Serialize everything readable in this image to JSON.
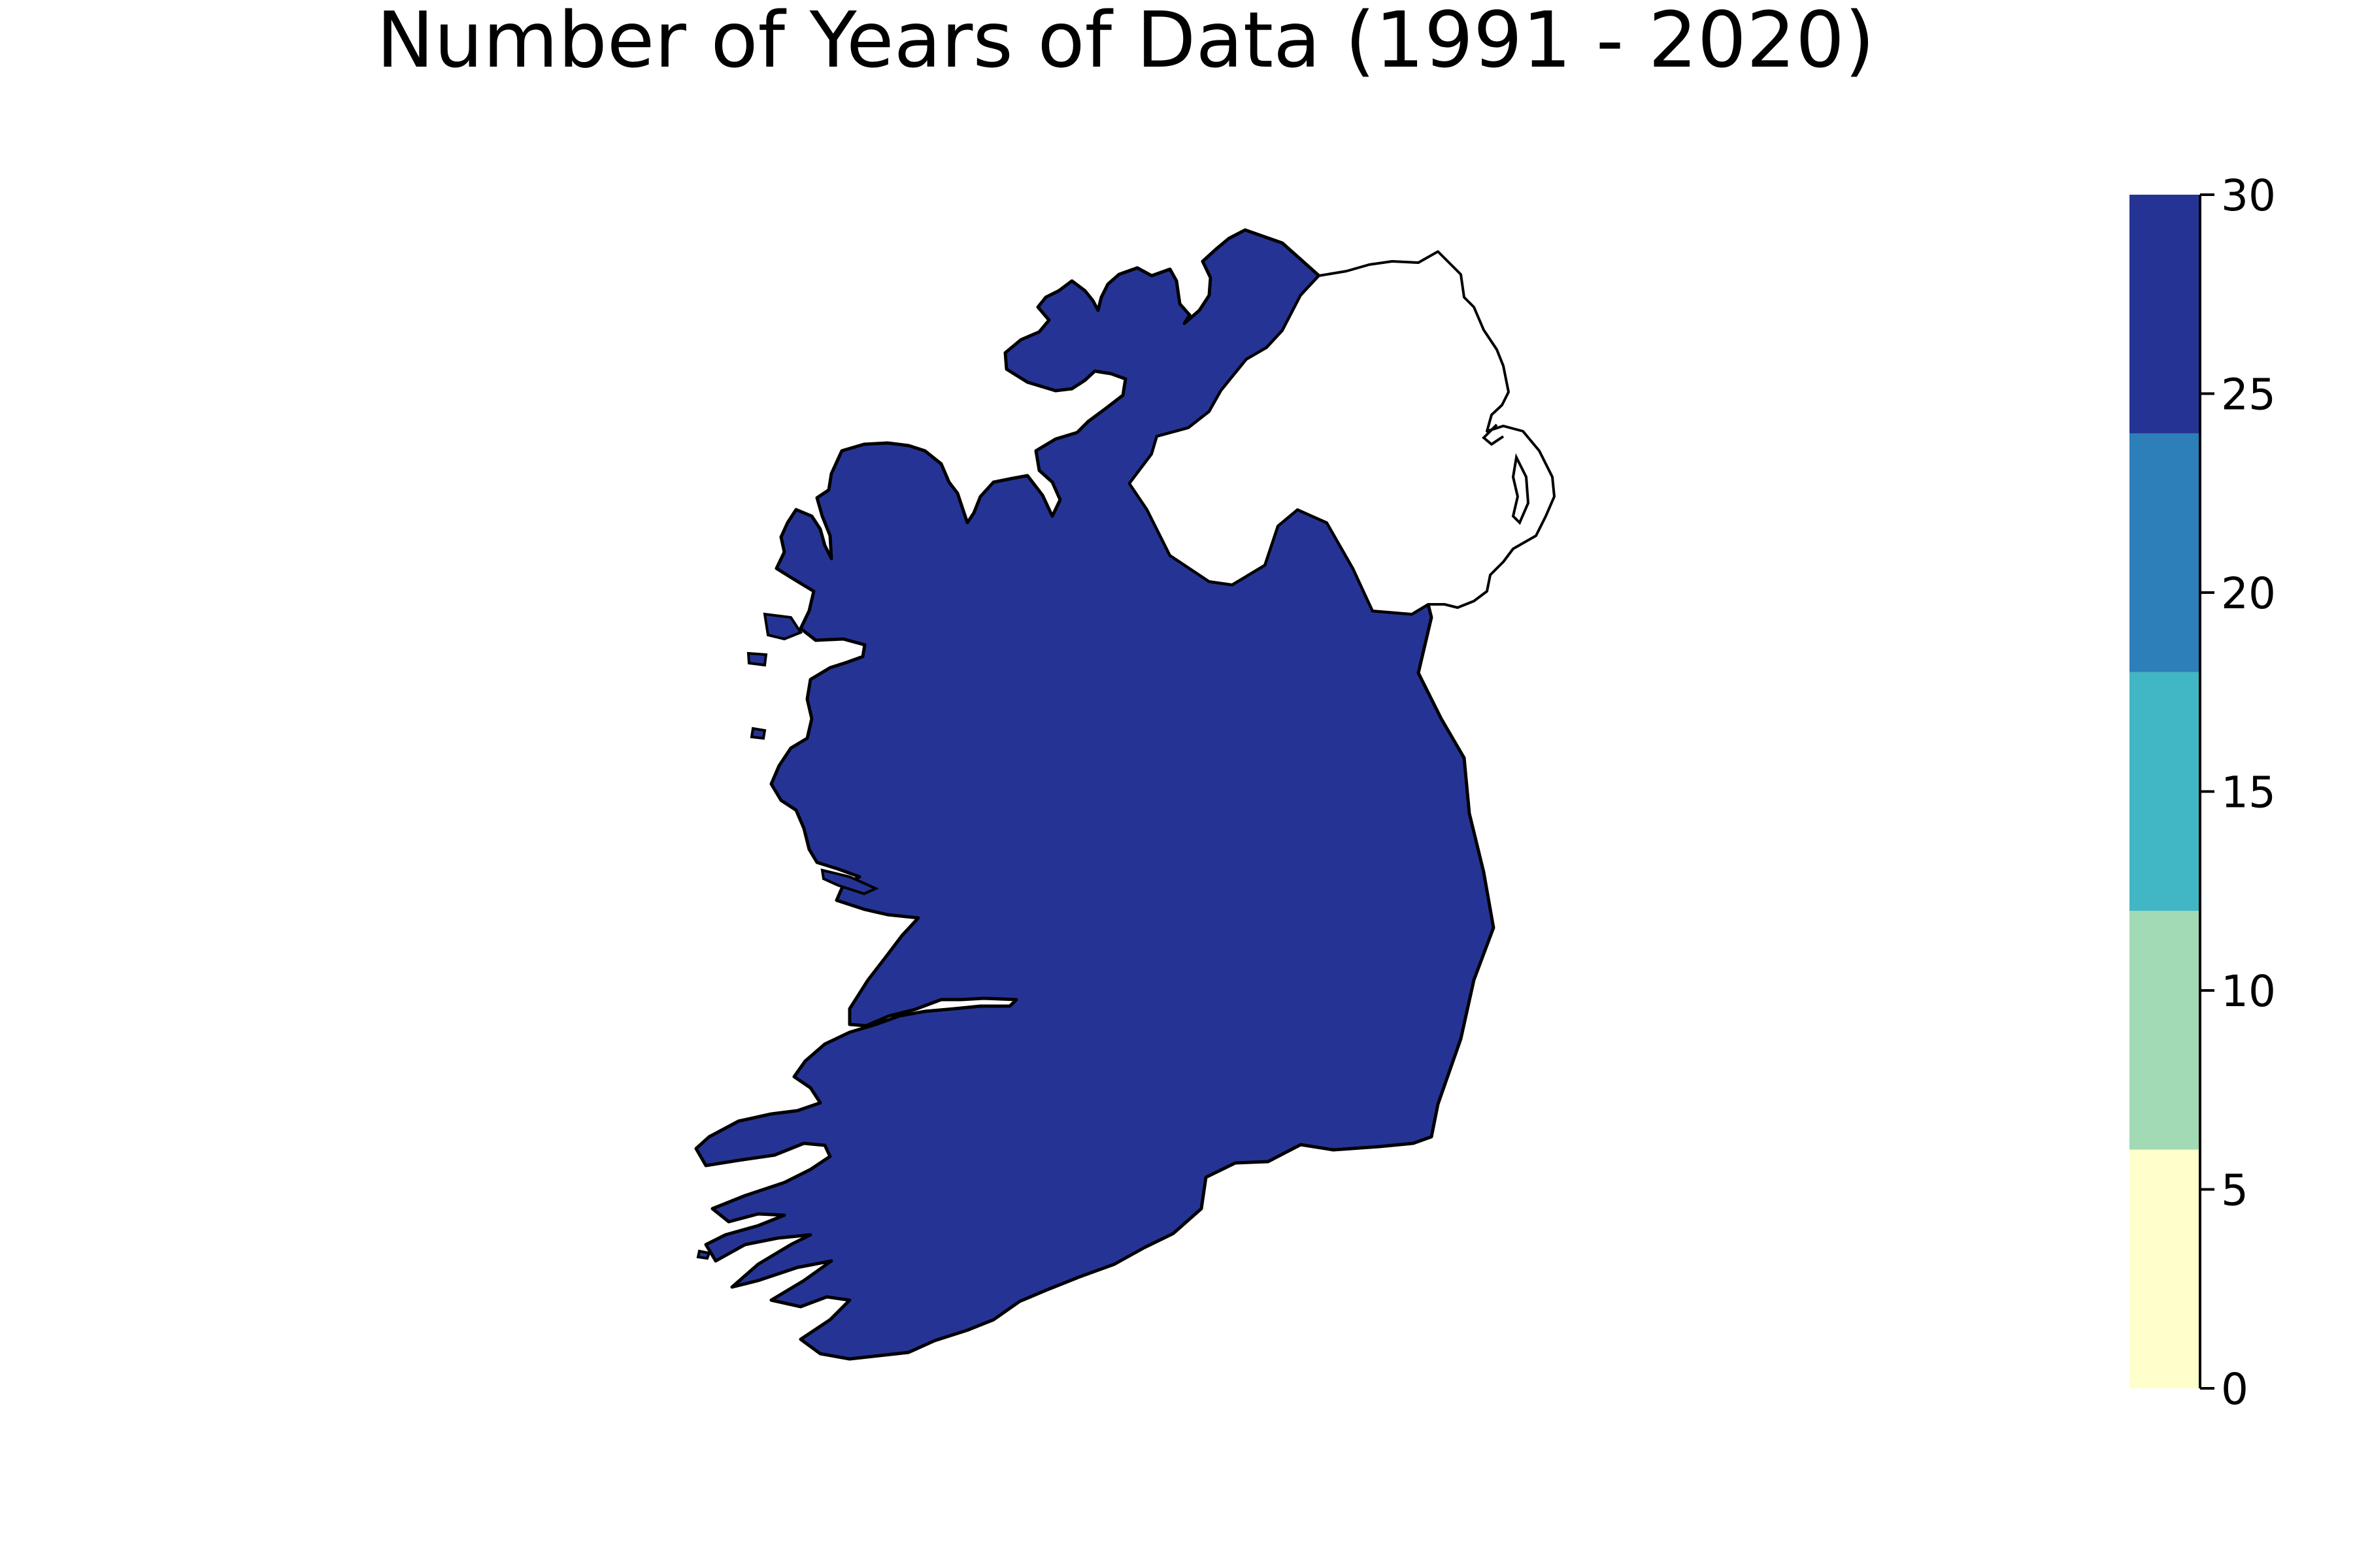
{
  "title": "Number of Years of Data (1991 - 2020)",
  "map": {
    "region_fill_color": "#253494",
    "border_color": "#000000",
    "background": "#ffffff"
  },
  "colorbar": {
    "min": 0,
    "max": 30,
    "bins": [
      {
        "from": 0,
        "to": 6,
        "color": "#ffffcc"
      },
      {
        "from": 6,
        "to": 12,
        "color": "#a1dab4"
      },
      {
        "from": 12,
        "to": 18,
        "color": "#41b6c4"
      },
      {
        "from": 18,
        "to": 24,
        "color": "#2c7fb8"
      },
      {
        "from": 24,
        "to": 30,
        "color": "#253494"
      }
    ],
    "ticks": [
      {
        "value": 0,
        "label": "0"
      },
      {
        "value": 5,
        "label": "5"
      },
      {
        "value": 10,
        "label": "10"
      },
      {
        "value": 15,
        "label": "15"
      },
      {
        "value": 20,
        "label": "20"
      },
      {
        "value": 25,
        "label": "25"
      },
      {
        "value": 30,
        "label": "30"
      }
    ]
  }
}
